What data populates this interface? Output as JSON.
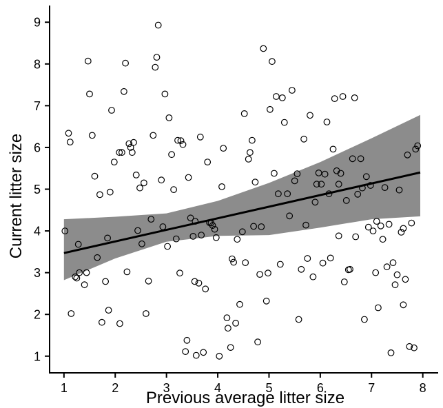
{
  "chart_data": {
    "type": "scatter",
    "xlabel": "Previous average litter size",
    "ylabel": "Current litter size",
    "xlim": [
      0.72,
      8.3
    ],
    "ylim": [
      0.6,
      9.4
    ],
    "xticks": [
      1,
      2,
      3,
      4,
      5,
      6,
      7,
      8
    ],
    "yticks": [
      1,
      2,
      3,
      4,
      5,
      6,
      7,
      8,
      9
    ],
    "grid": false,
    "fit_line": {
      "x": [
        1,
        7.95
      ],
      "y": [
        3.47,
        5.4
      ]
    },
    "confidence_band": {
      "x": [
        1,
        2,
        3,
        4,
        5,
        6,
        7,
        7.95
      ],
      "lower": [
        2.82,
        3.34,
        3.74,
        3.88,
        3.9,
        4.08,
        4.28,
        4.35
      ],
      "upper": [
        4.28,
        4.34,
        4.42,
        4.72,
        5.15,
        5.65,
        6.22,
        6.78
      ]
    },
    "points": [
      [
        1.02,
        4.0
      ],
      [
        1.09,
        6.34
      ],
      [
        1.12,
        6.13
      ],
      [
        1.14,
        2.02
      ],
      [
        1.22,
        2.9
      ],
      [
        1.25,
        2.87
      ],
      [
        1.28,
        3.68
      ],
      [
        1.3,
        3.0
      ],
      [
        1.4,
        2.71
      ],
      [
        1.44,
        3.0
      ],
      [
        1.47,
        8.07
      ],
      [
        1.5,
        7.28
      ],
      [
        1.55,
        6.29
      ],
      [
        1.6,
        5.31
      ],
      [
        1.65,
        3.36
      ],
      [
        1.7,
        4.87
      ],
      [
        1.74,
        1.81
      ],
      [
        1.81,
        2.79
      ],
      [
        1.85,
        3.83
      ],
      [
        1.87,
        2.1
      ],
      [
        1.9,
        4.93
      ],
      [
        1.93,
        6.89
      ],
      [
        1.98,
        5.65
      ],
      [
        2.09,
        1.78
      ],
      [
        2.13,
        5.88
      ],
      [
        2.17,
        7.34
      ],
      [
        2.2,
        8.02
      ],
      [
        2.23,
        3.02
      ],
      [
        2.27,
        6.09
      ],
      [
        2.3,
        6.0
      ],
      [
        2.33,
        5.88
      ],
      [
        2.36,
        6.12
      ],
      [
        2.41,
        5.34
      ],
      [
        2.44,
        4.01
      ],
      [
        2.48,
        5.03
      ],
      [
        2.52,
        3.69
      ],
      [
        2.56,
        5.15
      ],
      [
        2.6,
        2.02
      ],
      [
        2.65,
        2.8
      ],
      [
        2.7,
        4.28
      ],
      [
        2.74,
        6.29
      ],
      [
        2.78,
        7.92
      ],
      [
        2.81,
        8.16
      ],
      [
        2.84,
        8.93
      ],
      [
        2.9,
        5.22
      ],
      [
        2.93,
        4.1
      ],
      [
        2.97,
        7.28
      ],
      [
        3.02,
        3.63
      ],
      [
        3.05,
        6.71
      ],
      [
        3.1,
        5.83
      ],
      [
        3.14,
        4.99
      ],
      [
        3.19,
        3.81
      ],
      [
        3.22,
        6.17
      ],
      [
        3.26,
        2.99
      ],
      [
        3.28,
        6.16
      ],
      [
        3.32,
        6.07
      ],
      [
        3.37,
        1.11
      ],
      [
        3.4,
        1.38
      ],
      [
        3.43,
        5.28
      ],
      [
        3.47,
        4.31
      ],
      [
        3.52,
        3.87
      ],
      [
        3.55,
        2.79
      ],
      [
        3.58,
        1.02
      ],
      [
        3.63,
        2.75
      ],
      [
        3.66,
        6.25
      ],
      [
        3.68,
        3.9
      ],
      [
        3.72,
        1.09
      ],
      [
        3.76,
        2.61
      ],
      [
        3.8,
        5.65
      ],
      [
        3.84,
        4.2
      ],
      [
        3.87,
        4.19
      ],
      [
        3.9,
        4.13
      ],
      [
        3.94,
        4.04
      ],
      [
        3.97,
        3.84
      ],
      [
        4.03,
        1.0
      ],
      [
        4.08,
        5.06
      ],
      [
        4.11,
        5.98
      ],
      [
        4.18,
        1.92
      ],
      [
        4.2,
        1.67
      ],
      [
        4.25,
        1.21
      ],
      [
        4.28,
        3.33
      ],
      [
        4.31,
        3.25
      ],
      [
        4.35,
        1.79
      ],
      [
        4.38,
        3.8
      ],
      [
        4.43,
        2.24
      ],
      [
        4.48,
        3.98
      ],
      [
        4.52,
        6.81
      ],
      [
        4.54,
        3.24
      ],
      [
        4.6,
        5.72
      ],
      [
        4.63,
        5.88
      ],
      [
        4.67,
        6.17
      ],
      [
        4.7,
        4.11
      ],
      [
        4.73,
        5.17
      ],
      [
        4.78,
        1.34
      ],
      [
        4.82,
        2.96
      ],
      [
        4.85,
        4.1
      ],
      [
        4.89,
        8.37
      ],
      [
        4.95,
        2.32
      ],
      [
        4.98,
        2.99
      ],
      [
        5.02,
        6.91
      ],
      [
        5.06,
        8.06
      ],
      [
        5.1,
        5.38
      ],
      [
        5.14,
        7.22
      ],
      [
        5.18,
        4.89
      ],
      [
        5.22,
        3.2
      ],
      [
        5.26,
        7.19
      ],
      [
        5.3,
        6.6
      ],
      [
        5.36,
        4.89
      ],
      [
        5.4,
        4.36
      ],
      [
        5.45,
        7.37
      ],
      [
        5.5,
        5.2
      ],
      [
        5.55,
        5.37
      ],
      [
        5.58,
        1.88
      ],
      [
        5.63,
        3.08
      ],
      [
        5.68,
        6.2
      ],
      [
        5.72,
        4.14
      ],
      [
        5.75,
        3.34
      ],
      [
        5.8,
        6.77
      ],
      [
        5.86,
        2.9
      ],
      [
        5.9,
        4.69
      ],
      [
        5.93,
        5.12
      ],
      [
        5.97,
        5.39
      ],
      [
        6.02,
        5.12
      ],
      [
        6.05,
        3.23
      ],
      [
        6.09,
        5.36
      ],
      [
        6.13,
        6.61
      ],
      [
        6.17,
        4.89
      ],
      [
        6.2,
        3.35
      ],
      [
        6.25,
        5.96
      ],
      [
        6.28,
        7.17
      ],
      [
        6.32,
        5.44
      ],
      [
        6.36,
        3.88
      ],
      [
        6.4,
        5.38
      ],
      [
        6.44,
        7.22
      ],
      [
        6.47,
        2.78
      ],
      [
        6.51,
        4.73
      ],
      [
        6.55,
        3.07
      ],
      [
        6.58,
        3.08
      ],
      [
        6.63,
        5.73
      ],
      [
        6.67,
        7.19
      ],
      [
        6.69,
        3.86
      ],
      [
        6.73,
        4.88
      ],
      [
        6.79,
        5.73
      ],
      [
        6.82,
        5.03
      ],
      [
        6.86,
        1.88
      ],
      [
        6.9,
        5.3
      ],
      [
        6.94,
        4.09
      ],
      [
        6.98,
        5.09
      ],
      [
        7.03,
        4.0
      ],
      [
        7.08,
        3.0
      ],
      [
        7.1,
        4.23
      ],
      [
        7.13,
        2.16
      ],
      [
        7.18,
        4.12
      ],
      [
        7.22,
        3.8
      ],
      [
        7.26,
        5.04
      ],
      [
        7.3,
        3.14
      ],
      [
        7.34,
        4.16
      ],
      [
        7.38,
        1.08
      ],
      [
        7.42,
        3.24
      ],
      [
        7.46,
        2.71
      ],
      [
        7.5,
        2.95
      ],
      [
        7.54,
        4.98
      ],
      [
        7.58,
        3.97
      ],
      [
        7.62,
        2.23
      ],
      [
        7.66,
        2.84
      ],
      [
        7.7,
        5.82
      ],
      [
        7.74,
        1.23
      ],
      [
        7.78,
        4.19
      ],
      [
        7.83,
        1.2
      ],
      [
        7.86,
        5.96
      ],
      [
        7.9,
        6.04
      ],
      [
        7.62,
        4.06
      ],
      [
        2.08,
        5.88
      ],
      [
        6.36,
        5.12
      ],
      [
        3.56,
        4.23
      ]
    ]
  }
}
